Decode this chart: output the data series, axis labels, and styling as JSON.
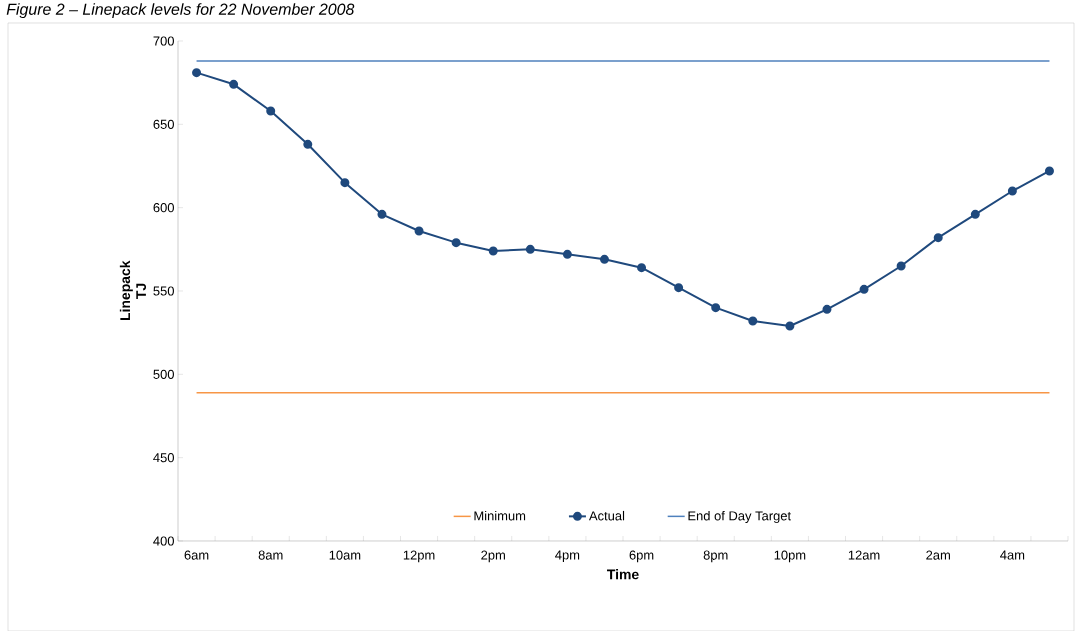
{
  "chart_data": {
    "type": "line",
    "title": "Figure 2 – Linepack levels for 22 November 2008",
    "xlabel": "Time",
    "ylabel": "Linepack TJ",
    "categories": [
      "6am",
      null,
      "8am",
      null,
      "10am",
      null,
      "12pm",
      null,
      "2pm",
      null,
      "4pm",
      null,
      "6pm",
      null,
      "8pm",
      null,
      "10pm",
      null,
      "12am",
      null,
      "2am",
      null,
      "4am",
      null
    ],
    "series": [
      {
        "name": "Minimum",
        "color": "#f79646",
        "marker": "none",
        "values": [
          489,
          489,
          489,
          489,
          489,
          489,
          489,
          489,
          489,
          489,
          489,
          489,
          489,
          489,
          489,
          489,
          489,
          489,
          489,
          489,
          489,
          489,
          489,
          489
        ]
      },
      {
        "name": "Actual",
        "color": "#1f497d",
        "marker": "circle",
        "values": [
          681,
          674,
          658,
          638,
          615,
          596,
          586,
          579,
          574,
          575,
          572,
          569,
          564,
          552,
          540,
          532,
          529,
          539,
          551,
          565,
          582,
          596,
          610,
          622
        ]
      },
      {
        "name": "End of Day Target",
        "color": "#4f81bd",
        "marker": "none",
        "values": [
          688,
          688,
          688,
          688,
          688,
          688,
          688,
          688,
          688,
          688,
          688,
          688,
          688,
          688,
          688,
          688,
          688,
          688,
          688,
          688,
          688,
          688,
          688,
          688
        ]
      }
    ],
    "ylim": [
      400,
      700
    ],
    "yticks": [
      400,
      450,
      500,
      550,
      600,
      650,
      700
    ],
    "legend": "bottom",
    "grid": false
  }
}
